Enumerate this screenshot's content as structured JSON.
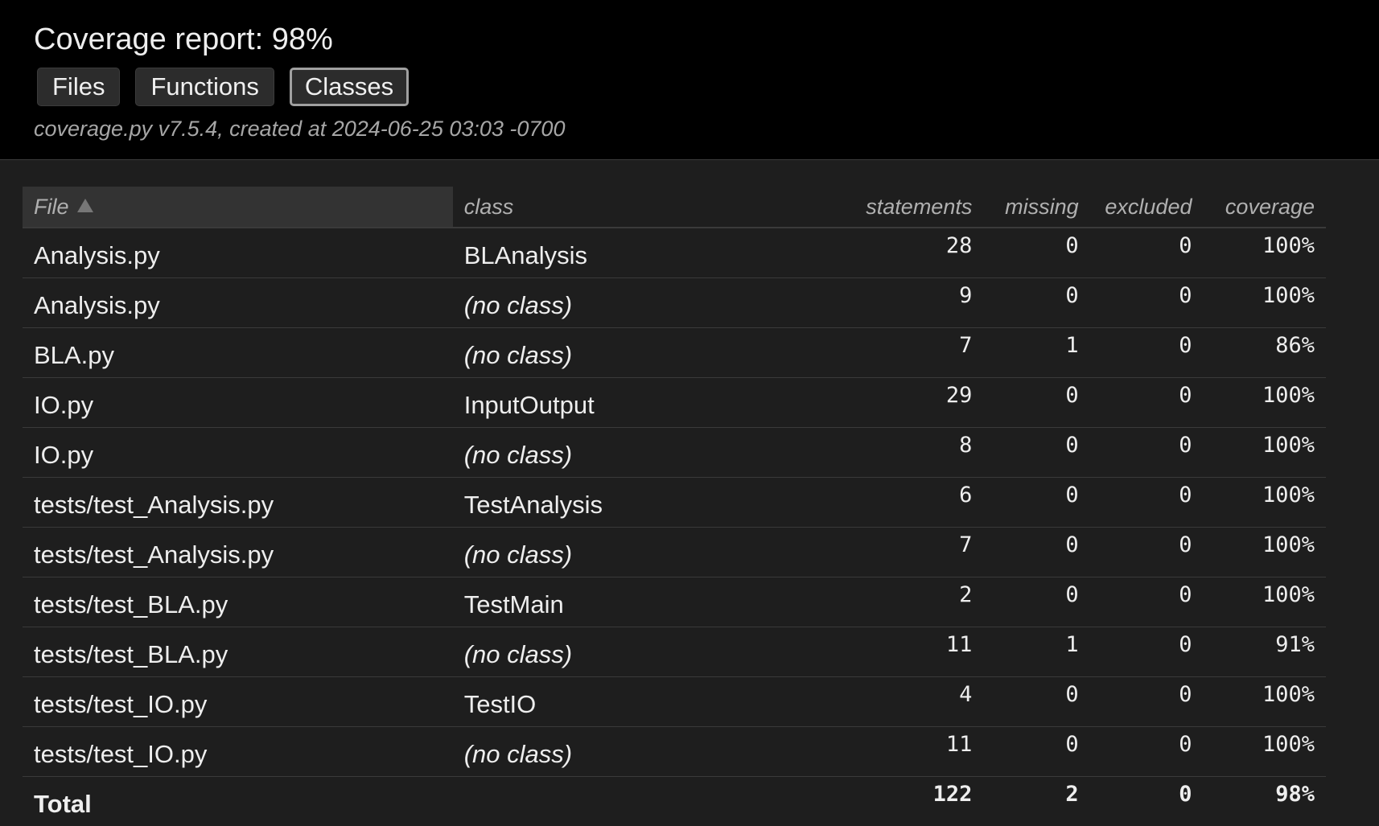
{
  "header": {
    "title": "Coverage report: 98%",
    "tabs": [
      {
        "label": "Files",
        "current": false
      },
      {
        "label": "Functions",
        "current": false
      },
      {
        "label": "Classes",
        "current": true
      }
    ],
    "meta": "coverage.py v7.5.4, created at 2024-06-25 03:03 -0700"
  },
  "table": {
    "columns": {
      "file": "File",
      "class": "class",
      "statements": "statements",
      "missing": "missing",
      "excluded": "excluded",
      "coverage": "coverage"
    },
    "sort": {
      "column": "file",
      "direction": "ascending",
      "icon": "sort-ascending-icon"
    },
    "rows": [
      {
        "file": "Analysis.py",
        "class": "BLAnalysis",
        "statements": "28",
        "missing": "0",
        "excluded": "0",
        "coverage": "100%"
      },
      {
        "file": "Analysis.py",
        "class": "(no class)",
        "statements": "9",
        "missing": "0",
        "excluded": "0",
        "coverage": "100%"
      },
      {
        "file": "BLA.py",
        "class": "(no class)",
        "statements": "7",
        "missing": "1",
        "excluded": "0",
        "coverage": "86%"
      },
      {
        "file": "IO.py",
        "class": "InputOutput",
        "statements": "29",
        "missing": "0",
        "excluded": "0",
        "coverage": "100%"
      },
      {
        "file": "IO.py",
        "class": "(no class)",
        "statements": "8",
        "missing": "0",
        "excluded": "0",
        "coverage": "100%"
      },
      {
        "file": "tests/test_Analysis.py",
        "class": "TestAnalysis",
        "statements": "6",
        "missing": "0",
        "excluded": "0",
        "coverage": "100%"
      },
      {
        "file": "tests/test_Analysis.py",
        "class": "(no class)",
        "statements": "7",
        "missing": "0",
        "excluded": "0",
        "coverage": "100%"
      },
      {
        "file": "tests/test_BLA.py",
        "class": "TestMain",
        "statements": "2",
        "missing": "0",
        "excluded": "0",
        "coverage": "100%"
      },
      {
        "file": "tests/test_BLA.py",
        "class": "(no class)",
        "statements": "11",
        "missing": "1",
        "excluded": "0",
        "coverage": "91%"
      },
      {
        "file": "tests/test_IO.py",
        "class": "TestIO",
        "statements": "4",
        "missing": "0",
        "excluded": "0",
        "coverage": "100%"
      },
      {
        "file": "tests/test_IO.py",
        "class": "(no class)",
        "statements": "11",
        "missing": "0",
        "excluded": "0",
        "coverage": "100%"
      }
    ],
    "total": {
      "label": "Total",
      "statements": "122",
      "missing": "2",
      "excluded": "0",
      "coverage": "98%"
    }
  }
}
